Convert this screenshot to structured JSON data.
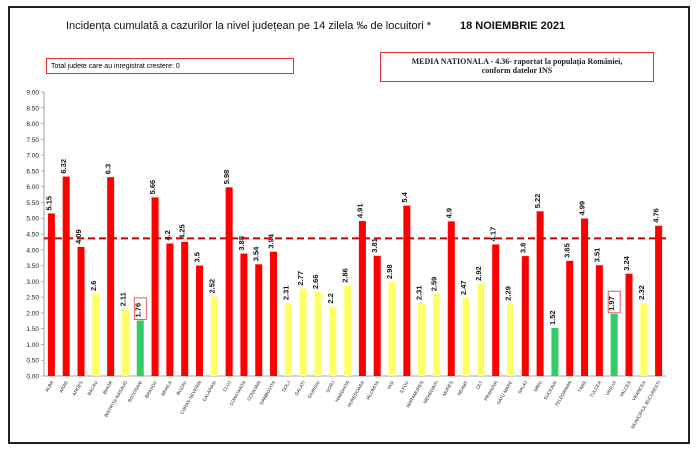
{
  "header": {
    "title": "Incidența cumulată a cazurilor la nivel județean pe 14 zilela ‰ de locuitori *",
    "date": "18 NOIEMBRIE 2021",
    "counter_note": "Total judete care au inregistrat crestere: 0",
    "national_line1": "MEDIA NATIONALA - 4.36- raportat la populația României,",
    "national_line2": "conform datelor INS"
  },
  "colors": {
    "red": "#ff0000",
    "yellow": "#ffff66",
    "green": "#33cc66",
    "reference_line": "#cc0000"
  },
  "chart_data": {
    "type": "bar",
    "title": "Incidența cumulată a cazurilor la nivel județean pe 14 zilela ‰ de locuitori *",
    "ylim": [
      0,
      9
    ],
    "yticks": [
      "0.00",
      "0.50",
      "1.00",
      "1.50",
      "2.00",
      "2.50",
      "3.00",
      "3.50",
      "4.00",
      "4.50",
      "5.00",
      "5.50",
      "6.00",
      "6.50",
      "7.00",
      "7.50",
      "8.00",
      "8.50",
      "9.00"
    ],
    "reference_value": 4.36,
    "grid": false,
    "legend": "none",
    "categories": [
      "ALBA",
      "ARAD",
      "ARGES",
      "BACAU",
      "BIHOR",
      "BISTRITA-NASAUD",
      "BOTOSANI",
      "BRASOV",
      "BRAILA",
      "BUZAU",
      "CARAS-SEVERIN",
      "CALARASI",
      "CLUJ",
      "CONSTANTA",
      "COVASNA",
      "DAMBOVITA",
      "DOLJ",
      "GALATI",
      "GIURGIU",
      "GORJ",
      "HARGHITA",
      "HUNEDOARA",
      "IALOMITA",
      "IASI",
      "ILFOV",
      "MARAMURES",
      "MEHEDINTI",
      "MURES",
      "NEAMT",
      "OLT",
      "PRAHOVA",
      "SATU MARE",
      "SALAJ",
      "SIBIU",
      "SUCEAVA",
      "TELEORMAN",
      "TIMIS",
      "TULCEA",
      "VASLUI",
      "VALCEA",
      "VRANCEA",
      "MUNICIPIUL BUCURESTI"
    ],
    "values": [
      5.15,
      6.32,
      4.09,
      2.6,
      6.3,
      2.11,
      1.76,
      5.66,
      4.2,
      4.25,
      3.5,
      2.52,
      5.98,
      3.88,
      3.54,
      3.94,
      2.31,
      2.77,
      2.66,
      2.2,
      2.86,
      4.91,
      3.81,
      2.98,
      5.4,
      2.31,
      2.59,
      4.9,
      2.47,
      2.92,
      4.17,
      2.29,
      3.8,
      5.22,
      1.52,
      3.65,
      4.99,
      3.51,
      1.97,
      3.24,
      2.32,
      4.76
    ],
    "value_labels": [
      "5.15",
      "6.32",
      "4.09",
      "2.6",
      "6.3",
      "2.11",
      "1.76",
      "5.66",
      "4.2",
      "4.25",
      "3.5",
      "2.52",
      "5.98",
      "3.88",
      "3.54",
      "3.94",
      "2.31",
      "2.77",
      "2.66",
      "2.2",
      "2.86",
      "4.91",
      "3.81",
      "2.98",
      "5.4",
      "2.31",
      "2.59",
      "4.9",
      "2.47",
      "2.92",
      "4.17",
      "2.29",
      "3.8",
      "5.22",
      "1.52",
      "3.65",
      "4.99",
      "3.51",
      "1.97",
      "3.24",
      "2.32",
      "4.76"
    ],
    "bar_colors": [
      "red",
      "red",
      "red",
      "yellow",
      "red",
      "yellow",
      "green",
      "red",
      "red",
      "red",
      "red",
      "yellow",
      "red",
      "red",
      "red",
      "red",
      "yellow",
      "yellow",
      "yellow",
      "yellow",
      "yellow",
      "red",
      "red",
      "yellow",
      "red",
      "yellow",
      "yellow",
      "red",
      "yellow",
      "yellow",
      "red",
      "yellow",
      "red",
      "red",
      "green",
      "red",
      "red",
      "red",
      "green",
      "red",
      "yellow",
      "red"
    ],
    "boxed_labels": [
      6,
      38
    ]
  }
}
